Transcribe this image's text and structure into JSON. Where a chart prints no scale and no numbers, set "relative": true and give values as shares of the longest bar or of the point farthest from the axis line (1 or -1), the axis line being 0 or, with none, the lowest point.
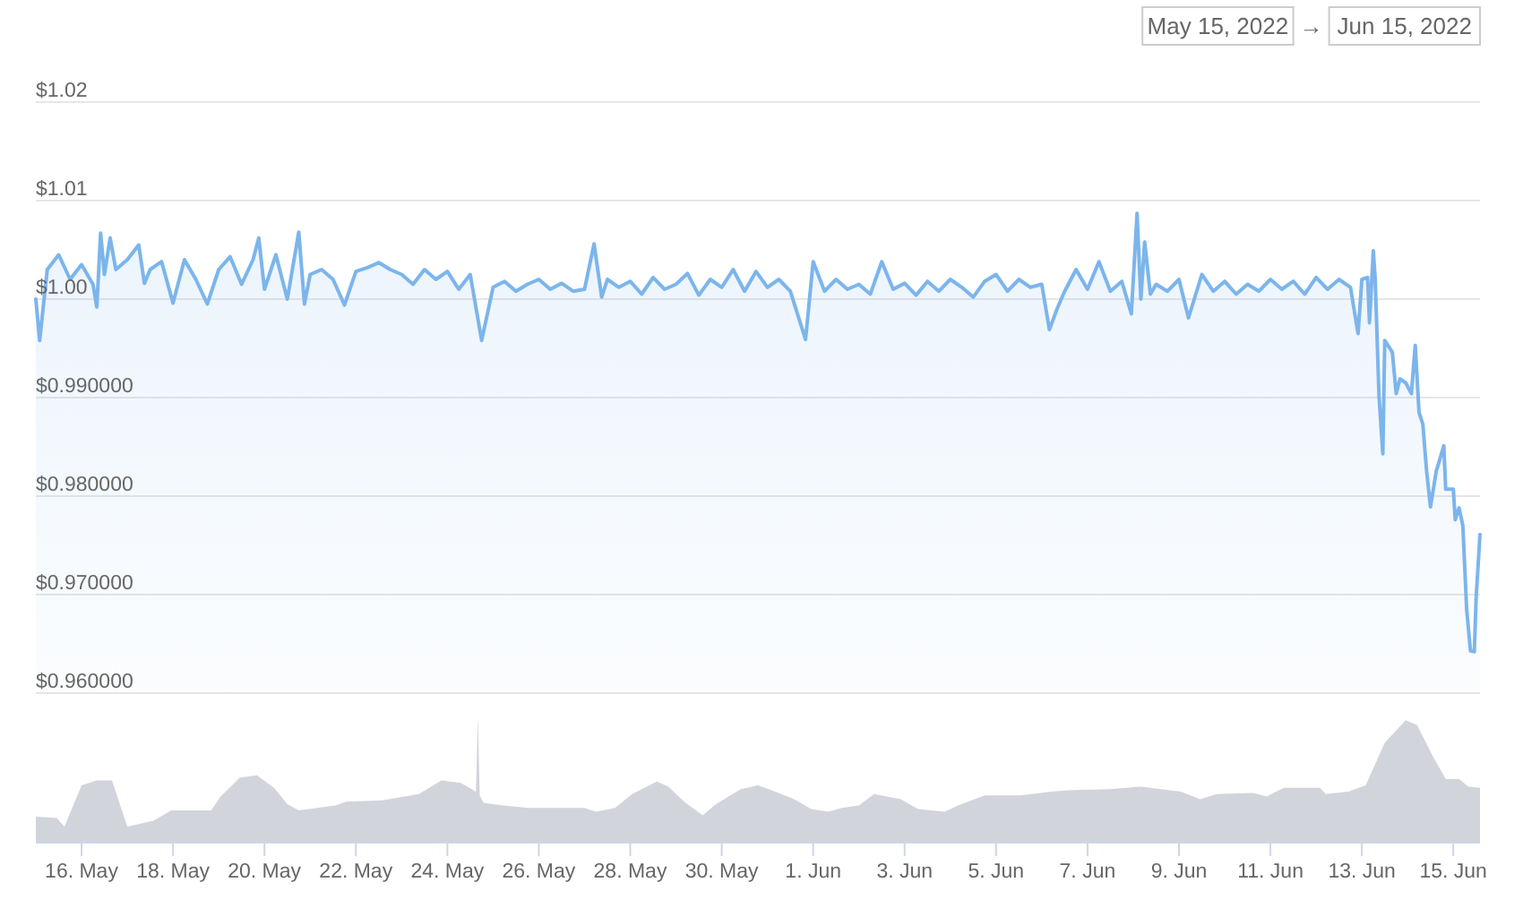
{
  "chart_data": [
    {
      "type": "area",
      "color": "#7cb5ec",
      "line_style": "solid",
      "x": [
        "2022-05-15T00:00",
        "2022-05-15T02:00",
        "2022-05-15T06:00",
        "2022-05-15T12:00",
        "2022-05-15T18:00",
        "2022-05-16T00:00",
        "2022-05-16T06:00",
        "2022-05-16T08:00",
        "2022-05-16T10:00",
        "2022-05-16T12:00",
        "2022-05-16T15:00",
        "2022-05-16T18:00",
        "2022-05-17T00:00",
        "2022-05-17T06:00",
        "2022-05-17T09:00",
        "2022-05-17T12:00",
        "2022-05-17T18:00",
        "2022-05-18T00:00",
        "2022-05-18T06:00",
        "2022-05-18T12:00",
        "2022-05-18T18:00",
        "2022-05-19T00:00",
        "2022-05-19T06:00",
        "2022-05-19T12:00",
        "2022-05-19T18:00",
        "2022-05-19T21:00",
        "2022-05-20T00:00",
        "2022-05-20T06:00",
        "2022-05-20T12:00",
        "2022-05-20T18:00",
        "2022-05-20T21:00",
        "2022-05-21T00:00",
        "2022-05-21T06:00",
        "2022-05-21T12:00",
        "2022-05-21T18:00",
        "2022-05-22T00:00",
        "2022-05-22T06:00",
        "2022-05-22T12:00",
        "2022-05-22T18:00",
        "2022-05-23T00:00",
        "2022-05-23T06:00",
        "2022-05-23T12:00",
        "2022-05-23T18:00",
        "2022-05-24T00:00",
        "2022-05-24T06:00",
        "2022-05-24T12:00",
        "2022-05-24T18:00",
        "2022-05-25T00:00",
        "2022-05-25T06:00",
        "2022-05-25T12:00",
        "2022-05-25T18:00",
        "2022-05-26T00:00",
        "2022-05-26T06:00",
        "2022-05-26T12:00",
        "2022-05-26T18:00",
        "2022-05-27T00:00",
        "2022-05-27T05:00",
        "2022-05-27T09:00",
        "2022-05-27T12:00",
        "2022-05-27T18:00",
        "2022-05-28T00:00",
        "2022-05-28T06:00",
        "2022-05-28T12:00",
        "2022-05-28T18:00",
        "2022-05-29T00:00",
        "2022-05-29T06:00",
        "2022-05-29T12:00",
        "2022-05-29T18:00",
        "2022-05-30T00:00",
        "2022-05-30T06:00",
        "2022-05-30T12:00",
        "2022-05-30T18:00",
        "2022-05-31T00:00",
        "2022-05-31T06:00",
        "2022-05-31T12:00",
        "2022-05-31T20:00",
        "2022-06-01T00:00",
        "2022-06-01T06:00",
        "2022-06-01T12:00",
        "2022-06-01T18:00",
        "2022-06-02T00:00",
        "2022-06-02T06:00",
        "2022-06-02T12:00",
        "2022-06-02T18:00",
        "2022-06-03T00:00",
        "2022-06-03T06:00",
        "2022-06-03T12:00",
        "2022-06-03T18:00",
        "2022-06-04T00:00",
        "2022-06-04T06:00",
        "2022-06-04T12:00",
        "2022-06-04T18:00",
        "2022-06-05T00:00",
        "2022-06-05T06:00",
        "2022-06-05T12:00",
        "2022-06-05T18:00",
        "2022-06-06T00:00",
        "2022-06-06T04:00",
        "2022-06-06T08:00",
        "2022-06-06T12:00",
        "2022-06-06T18:00",
        "2022-06-07T00:00",
        "2022-06-07T06:00",
        "2022-06-07T12:00",
        "2022-06-07T18:00",
        "2022-06-07T23:00",
        "2022-06-08T02:00",
        "2022-06-08T04:00",
        "2022-06-08T06:00",
        "2022-06-08T09:00",
        "2022-06-08T12:00",
        "2022-06-08T18:00",
        "2022-06-09T00:00",
        "2022-06-09T05:00",
        "2022-06-09T12:00",
        "2022-06-09T18:00",
        "2022-06-10T00:00",
        "2022-06-10T06:00",
        "2022-06-10T12:00",
        "2022-06-10T18:00",
        "2022-06-11T00:00",
        "2022-06-11T06:00",
        "2022-06-11T12:00",
        "2022-06-11T18:00",
        "2022-06-12T00:00",
        "2022-06-12T06:00",
        "2022-06-12T12:00",
        "2022-06-12T18:00",
        "2022-06-12T22:00",
        "2022-06-13T00:00",
        "2022-06-13T03:00",
        "2022-06-13T04:00",
        "2022-06-13T06:00",
        "2022-06-13T07:00",
        "2022-06-13T09:00",
        "2022-06-13T11:00",
        "2022-06-13T12:00",
        "2022-06-13T16:00",
        "2022-06-13T18:00",
        "2022-06-13T20:00",
        "2022-06-13T23:00",
        "2022-06-14T02:00",
        "2022-06-14T04:00",
        "2022-06-14T06:00",
        "2022-06-14T08:00",
        "2022-06-14T10:00",
        "2022-06-14T12:00",
        "2022-06-14T15:00",
        "2022-06-14T19:00",
        "2022-06-14T20:00",
        "2022-06-15T00:00",
        "2022-06-15T01:00",
        "2022-06-15T03:00",
        "2022-06-15T05:00",
        "2022-06-15T07:00",
        "2022-06-15T09:00",
        "2022-06-15T11:00",
        "2022-06-15T12:00",
        "2022-06-15T14:00"
      ],
      "values": [
        1.0,
        0.9958,
        1.003,
        1.0045,
        1.002,
        1.0035,
        1.0015,
        0.9992,
        1.0067,
        1.0025,
        1.0062,
        1.003,
        1.004,
        1.0055,
        1.0016,
        1.003,
        1.0038,
        0.9996,
        1.004,
        1.002,
        0.9995,
        1.003,
        1.0043,
        1.0015,
        1.004,
        1.0062,
        1.001,
        1.0045,
        1.0,
        1.0068,
        0.9995,
        1.0025,
        1.003,
        1.002,
        0.9994,
        1.0028,
        1.0032,
        1.0037,
        1.003,
        1.0025,
        1.0015,
        1.003,
        1.002,
        1.0028,
        1.001,
        1.0025,
        0.9958,
        1.0012,
        1.0018,
        1.0008,
        1.0015,
        1.002,
        1.001,
        1.0016,
        1.0008,
        1.001,
        1.0056,
        1.0002,
        1.002,
        1.0012,
        1.0018,
        1.0005,
        1.0022,
        1.001,
        1.0015,
        1.0026,
        1.0004,
        1.002,
        1.0012,
        1.003,
        1.0008,
        1.0028,
        1.0012,
        1.002,
        1.0008,
        0.9959,
        1.0038,
        1.0008,
        1.002,
        1.001,
        1.0015,
        1.0005,
        1.0038,
        1.001,
        1.0016,
        1.0004,
        1.0018,
        1.0008,
        1.002,
        1.0012,
        1.0002,
        1.0018,
        1.0025,
        1.0008,
        1.002,
        1.0012,
        1.0015,
        0.9969,
        0.999,
        1.0008,
        1.003,
        1.001,
        1.0038,
        1.0008,
        1.0018,
        0.9985,
        1.0087,
        1.0,
        1.0058,
        1.0005,
        1.0015,
        1.0008,
        1.002,
        0.9981,
        1.0025,
        1.0008,
        1.0018,
        1.0005,
        1.0015,
        1.0008,
        1.002,
        1.001,
        1.0018,
        1.0005,
        1.0022,
        1.001,
        1.002,
        1.0012,
        0.9965,
        1.002,
        1.0022,
        0.9976,
        1.0049,
        1.002,
        0.9901,
        0.9843,
        0.9958,
        0.9946,
        0.9904,
        0.9919,
        0.9915,
        0.9904,
        0.9953,
        0.9885,
        0.9873,
        0.9825,
        0.9789,
        0.9825,
        0.9851,
        0.9807,
        0.9807,
        0.9776,
        0.9788,
        0.977,
        0.9685,
        0.9643,
        0.9642,
        0.9698,
        0.9761
      ],
      "xlim": [
        "2022-05-15T00:00",
        "2022-06-15T14:00"
      ],
      "ylim": [
        0.96,
        1.02
      ],
      "yticks": [
        {
          "value": 0.96,
          "label": "$0.960000"
        },
        {
          "value": 0.97,
          "label": "$0.970000"
        },
        {
          "value": 0.98,
          "label": "$0.980000"
        },
        {
          "value": 0.99,
          "label": "$0.990000"
        },
        {
          "value": 1.0,
          "label": "$1.00"
        },
        {
          "value": 1.01,
          "label": "$1.01"
        },
        {
          "value": 1.02,
          "label": "$1.02"
        }
      ],
      "grid": "y",
      "tick_labels": "y",
      "annotations": [
        "May 15, 2022",
        "→",
        "Jun 15, 2022"
      ]
    },
    {
      "type": "area",
      "color": "#d1d4da",
      "relative": true,
      "x": [
        "2022-05-15T00:00",
        "2022-05-15T11:00",
        "2022-05-15T15:00",
        "2022-05-16T00:00",
        "2022-05-16T08:00",
        "2022-05-16T16:00",
        "2022-05-17T00:00",
        "2022-05-17T14:00",
        "2022-05-17T23:00",
        "2022-05-18T20:00",
        "2022-05-19T01:00",
        "2022-05-19T11:00",
        "2022-05-19T20:00",
        "2022-05-20T05:00",
        "2022-05-20T12:00",
        "2022-05-20T18:00",
        "2022-05-21T13:00",
        "2022-05-21T19:00",
        "2022-05-22T14:00",
        "2022-05-23T09:00",
        "2022-05-23T21:00",
        "2022-05-24T07:00",
        "2022-05-24T15:00",
        "2022-05-24T16:00",
        "2022-05-24T17:00",
        "2022-05-24T19:00",
        "2022-05-25T05:00",
        "2022-05-25T19:00",
        "2022-05-27T00:00",
        "2022-05-27T06:00",
        "2022-05-27T16:00",
        "2022-05-28T01:00",
        "2022-05-28T14:00",
        "2022-05-28T20:00",
        "2022-05-29T05:00",
        "2022-05-29T14:00",
        "2022-05-29T21:00",
        "2022-05-30T10:00",
        "2022-05-30T19:00",
        "2022-05-31T04:00",
        "2022-05-31T14:00",
        "2022-05-31T23:00",
        "2022-06-01T08:00",
        "2022-06-01T15:00",
        "2022-06-02T00:00",
        "2022-06-02T08:00",
        "2022-06-02T22:00",
        "2022-06-03T07:00",
        "2022-06-03T21:00",
        "2022-06-04T04:00",
        "2022-06-04T18:00",
        "2022-06-05T13:00",
        "2022-06-06T05:00",
        "2022-06-06T14:00",
        "2022-06-07T12:00",
        "2022-06-08T04:00",
        "2022-06-09T01:00",
        "2022-06-09T11:00",
        "2022-06-09T20:00",
        "2022-06-10T15:00",
        "2022-06-10T22:00",
        "2022-06-11T07:00",
        "2022-06-12T02:00",
        "2022-06-12T05:00",
        "2022-06-12T17:00",
        "2022-06-13T02:00",
        "2022-06-13T12:00",
        "2022-06-13T23:00",
        "2022-06-14T05:00",
        "2022-06-14T13:00",
        "2022-06-14T20:00",
        "2022-06-15T03:00",
        "2022-06-15T08:00",
        "2022-06-15T14:00"
      ],
      "values": [
        0.2,
        0.19,
        0.12,
        0.45,
        0.49,
        0.49,
        0.12,
        0.17,
        0.25,
        0.25,
        0.36,
        0.51,
        0.53,
        0.43,
        0.3,
        0.25,
        0.29,
        0.32,
        0.33,
        0.38,
        0.49,
        0.47,
        0.4,
        1,
        0.37,
        0.31,
        0.29,
        0.27,
        0.27,
        0.24,
        0.27,
        0.38,
        0.48,
        0.44,
        0.31,
        0.21,
        0.3,
        0.42,
        0.45,
        0.4,
        0.34,
        0.26,
        0.24,
        0.27,
        0.29,
        0.38,
        0.34,
        0.26,
        0.24,
        0.29,
        0.37,
        0.37,
        0.4,
        0.41,
        0.42,
        0.44,
        0.4,
        0.34,
        0.38,
        0.39,
        0.36,
        0.43,
        0.43,
        0.38,
        0.4,
        0.45,
        0.79,
        0.97,
        0.93,
        0.69,
        0.5,
        0.5,
        0.44,
        0.43
      ],
      "xlim": [
        "2022-05-15T00:00",
        "2022-06-15T14:00"
      ],
      "xticks": [
        {
          "value": "2022-05-16",
          "label": "16. May"
        },
        {
          "value": "2022-05-18",
          "label": "18. May"
        },
        {
          "value": "2022-05-20",
          "label": "20. May"
        },
        {
          "value": "2022-05-22",
          "label": "22. May"
        },
        {
          "value": "2022-05-24",
          "label": "24. May"
        },
        {
          "value": "2022-05-26",
          "label": "26. May"
        },
        {
          "value": "2022-05-28",
          "label": "28. May"
        },
        {
          "value": "2022-05-30",
          "label": "30. May"
        },
        {
          "value": "2022-06-01",
          "label": "1. Jun"
        },
        {
          "value": "2022-06-03",
          "label": "3. Jun"
        },
        {
          "value": "2022-06-05",
          "label": "5. Jun"
        },
        {
          "value": "2022-06-07",
          "label": "7. Jun"
        },
        {
          "value": "2022-06-09",
          "label": "9. Jun"
        },
        {
          "value": "2022-06-11",
          "label": "11. Jun"
        },
        {
          "value": "2022-06-13",
          "label": "13. Jun"
        },
        {
          "value": "2022-06-15",
          "label": "15. Jun"
        }
      ],
      "tick_labels": "x"
    }
  ]
}
